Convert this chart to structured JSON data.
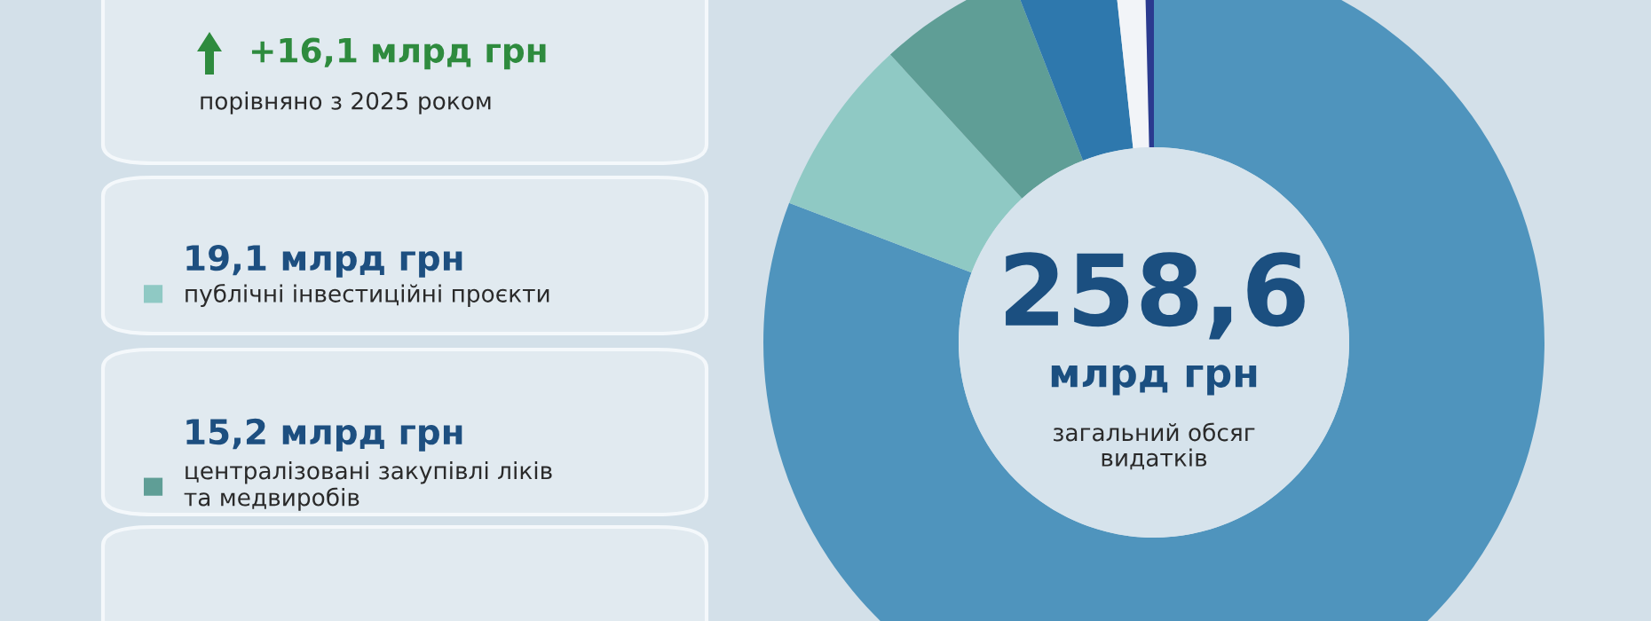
{
  "chart_data": {
    "type": "donut",
    "categories": [
      null,
      "публічні інвестиційні проєкти",
      "централізовані закупівлі ліків\nта медвиробів",
      null,
      null,
      null
    ],
    "values": [
      209.0,
      19.1,
      15.2,
      10.9,
      3.4,
      1.0
    ],
    "colors": [
      "#4f94bd",
      "#8fc9c4",
      "#5f9e96",
      "#2e78ad",
      "#f2f4f8",
      "#2b3a8f"
    ],
    "legend": "left",
    "value_labels": [
      null,
      "19,1 млрд грн",
      "15,2 млрд грн",
      null,
      null,
      null
    ],
    "annotations": [
      "+16,1 млрд грн",
      "порівняно з 2025 роком",
      "258,6",
      "млрд грн",
      "загальний обсяг\nвидатків"
    ]
  }
}
